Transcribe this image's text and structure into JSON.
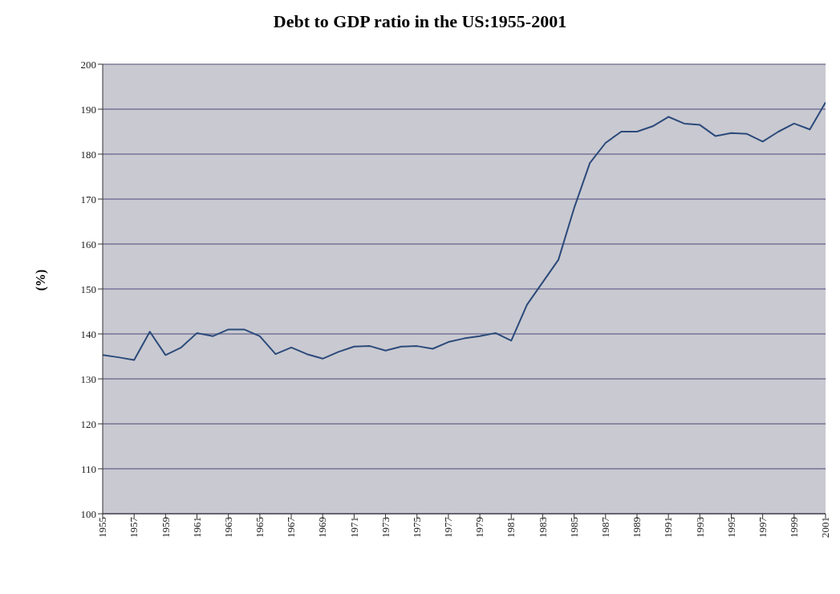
{
  "chart_data": {
    "type": "line",
    "title": "Debt to GDP ratio in the US:1955-2001",
    "ylabel": "(%)",
    "x": [
      1955,
      1956,
      1957,
      1958,
      1959,
      1960,
      1961,
      1962,
      1963,
      1964,
      1965,
      1966,
      1967,
      1968,
      1969,
      1970,
      1971,
      1972,
      1973,
      1974,
      1975,
      1976,
      1977,
      1978,
      1979,
      1980,
      1981,
      1982,
      1983,
      1984,
      1985,
      1986,
      1987,
      1988,
      1989,
      1990,
      1991,
      1992,
      1993,
      1994,
      1995,
      1996,
      1997,
      1998,
      1999,
      2000,
      2001
    ],
    "series": [
      {
        "color": "#2b4a7a",
        "values": [
          135.3,
          134.8,
          134.2,
          140.5,
          135.3,
          137,
          140.2,
          139.5,
          141,
          141,
          139.5,
          135.5,
          137,
          135.5,
          134.5,
          136,
          137.2,
          137.3,
          136.3,
          137.2,
          137.3,
          136.7,
          138.2,
          139,
          139.5,
          140.2,
          138.5,
          146.5,
          151.5,
          156.5,
          168,
          178,
          182.5,
          185,
          185,
          186.2,
          188.3,
          186.8,
          186.5,
          184,
          184.7,
          184.5,
          182.8,
          185,
          186.8,
          185.5,
          191.5
        ]
      }
    ],
    "xlim": [
      1955,
      2001
    ],
    "xticks": [
      1955,
      1957,
      1959,
      1961,
      1963,
      1965,
      1967,
      1969,
      1971,
      1973,
      1975,
      1977,
      1979,
      1981,
      1983,
      1985,
      1987,
      1989,
      1991,
      1993,
      1995,
      1997,
      1999,
      2001
    ],
    "ylim": [
      100,
      200
    ],
    "yticks": [
      100,
      110,
      120,
      130,
      140,
      150,
      160,
      170,
      180,
      190,
      200
    ],
    "grid": "y",
    "legend": false,
    "marker": "none",
    "line_style": "solid"
  }
}
